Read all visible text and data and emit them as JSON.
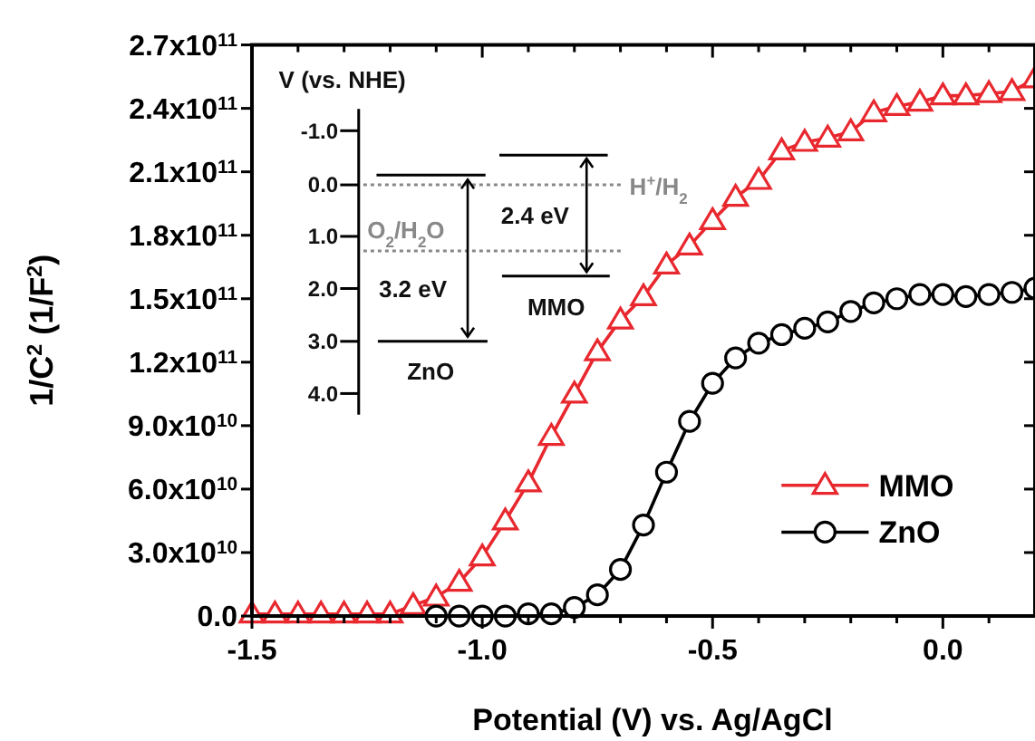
{
  "chart_data": {
    "type": "line",
    "xlabel": "Potential (V) vs. Ag/AgCl",
    "ylabel": "1/C$^{2}$ (1/F$^{2}$)",
    "xlim": [
      -1.5,
      0.2
    ],
    "ylim": [
      0,
      270000000000.0
    ],
    "xticks": [
      {
        "value": -1.5,
        "label": "-1.5"
      },
      {
        "value": -1.4,
        "label": null
      },
      {
        "value": -1.3,
        "label": null
      },
      {
        "value": -1.2,
        "label": null
      },
      {
        "value": -1.1,
        "label": null
      },
      {
        "value": -1.0,
        "label": "-1.0"
      },
      {
        "value": -0.9,
        "label": null
      },
      {
        "value": -0.8,
        "label": null
      },
      {
        "value": -0.7,
        "label": null
      },
      {
        "value": -0.6,
        "label": null
      },
      {
        "value": -0.5,
        "label": "-0.5"
      },
      {
        "value": -0.4,
        "label": null
      },
      {
        "value": -0.3,
        "label": null
      },
      {
        "value": -0.2,
        "label": null
      },
      {
        "value": -0.1,
        "label": null
      },
      {
        "value": 0,
        "label": "0.0"
      },
      {
        "value": 0.1,
        "label": null
      }
    ],
    "yticks": [
      {
        "value": 0,
        "label": "0.0"
      },
      {
        "value": 30000000000.0,
        "label": "3.0x10$^{10}$"
      },
      {
        "value": 60000000000.0,
        "label": "6.0x10$^{10}$"
      },
      {
        "value": 90000000000.0,
        "label": "9.0x10$^{10}$"
      },
      {
        "value": 120000000000.0,
        "label": "1.2x10$^{11}$"
      },
      {
        "value": 150000000000.0,
        "label": "1.5x10$^{11}$"
      },
      {
        "value": 180000000000.0,
        "label": "1.8x10$^{11}$"
      },
      {
        "value": 210000000000.0,
        "label": "2.1x10$^{11}$"
      },
      {
        "value": 240000000000.0,
        "label": "2.4x10$^{11}$"
      },
      {
        "value": 270000000000.0,
        "label": "2.7x10$^{11}$"
      }
    ],
    "legend": "bottom right",
    "grid": false,
    "series": [
      {
        "name": "MMO",
        "color": "#e8282e",
        "marker": "triangle",
        "x": [
          -1.5,
          -1.45,
          -1.4,
          -1.35,
          -1.3,
          -1.25,
          -1.2,
          -1.15,
          -1.1,
          -1.05,
          -1.0,
          -0.95,
          -0.9,
          -0.85,
          -0.8,
          -0.75,
          -0.7,
          -0.65,
          -0.6,
          -0.55,
          -0.5,
          -0.45,
          -0.4,
          -0.35,
          -0.3,
          -0.25,
          -0.2,
          -0.15,
          -0.1,
          -0.05,
          0.0,
          0.05,
          0.1,
          0.15,
          0.2
        ],
        "values": [
          1000000000.0,
          1000000000.0,
          1000000000.0,
          1000000000.0,
          1000000000.0,
          1000000000.0,
          1000000000.0,
          5000000000.0,
          9000000000.0,
          16000000000.0,
          28000000000.0,
          45000000000.0,
          63000000000.0,
          85000000000.0,
          105000000000.0,
          125000000000.0,
          140000000000.0,
          151000000000.0,
          166000000000.0,
          175000000000.0,
          187000000000.0,
          198000000000.0,
          206000000000.0,
          220000000000.0,
          224000000000.0,
          226000000000.0,
          229000000000.0,
          238000000000.0,
          241000000000.0,
          243000000000.0,
          246000000000.0,
          246000000000.0,
          247000000000.0,
          248000000000.0,
          254000000000.0
        ]
      },
      {
        "name": "ZnO",
        "color": "#000000",
        "marker": "circle",
        "x": [
          -1.1,
          -1.05,
          -1.0,
          -0.95,
          -0.9,
          -0.85,
          -0.8,
          -0.75,
          -0.7,
          -0.65,
          -0.6,
          -0.55,
          -0.5,
          -0.45,
          -0.4,
          -0.35,
          -0.3,
          -0.25,
          -0.2,
          -0.15,
          -0.1,
          -0.05,
          0.0,
          0.05,
          0.1,
          0.15,
          0.2
        ],
        "values": [
          0,
          0,
          0,
          0,
          1000000000.0,
          1000000000.0,
          4000000000.0,
          10000000000.0,
          22000000000.0,
          43000000000.0,
          68000000000.0,
          92000000000.0,
          110000000000.0,
          122000000000.0,
          129000000000.0,
          133000000000.0,
          136000000000.0,
          139000000000.0,
          144000000000.0,
          148000000000.0,
          150000000000.0,
          152000000000.0,
          152000000000.0,
          151000000000.0,
          152000000000.0,
          153000000000.0,
          155000000000.0
        ]
      }
    ],
    "annotations": [
      "V (vs. NHE)",
      "-1.0",
      "0.0",
      "1.0",
      "2.0",
      "3.0",
      "4.0",
      "H$^{+}$/H$_{2}$",
      "O$_{2}$/H$_{2}$O",
      "3.2 eV",
      "2.4 eV",
      "ZnO",
      "MMO"
    ]
  }
}
